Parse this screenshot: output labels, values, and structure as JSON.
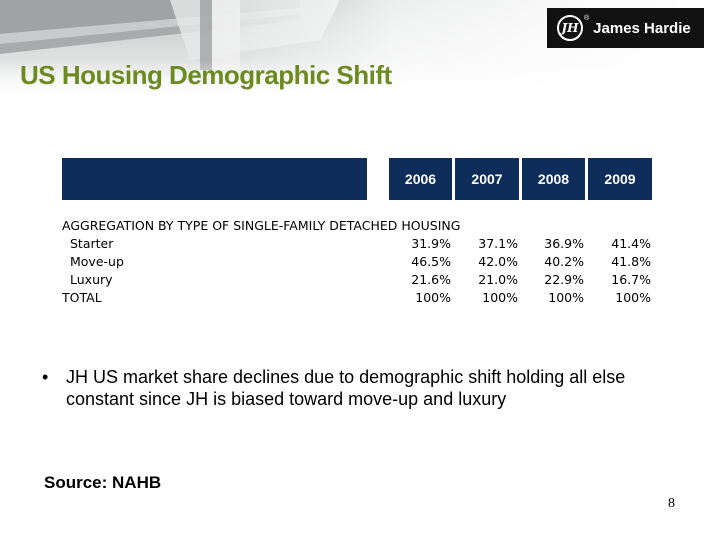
{
  "brand": {
    "logo_mark": "JH",
    "name": "James Hardie",
    "reg_mark": "®"
  },
  "slide": {
    "title": "US Housing Demographic Shift",
    "page_number": "8"
  },
  "table": {
    "years": [
      "2006",
      "2007",
      "2008",
      "2009"
    ],
    "section_heading": "AGGREGATION BY TYPE OF SINGLE-FAMILY DETACHED HOUSING",
    "rows": [
      {
        "label": "Starter",
        "values": [
          "31.9%",
          "37.1%",
          "36.9%",
          "41.4%"
        ]
      },
      {
        "label": "Move-up",
        "values": [
          "46.5%",
          "42.0%",
          "40.2%",
          "41.8%"
        ]
      },
      {
        "label": "Luxury",
        "values": [
          "21.6%",
          "21.0%",
          "22.9%",
          "16.7%"
        ]
      },
      {
        "label": "TOTAL",
        "values": [
          "100%",
          "100%",
          "100%",
          "100%"
        ]
      }
    ]
  },
  "bullets": [
    {
      "marker": "•",
      "text": "JH US market share declines due to demographic shift holding all else constant since JH is biased toward move-up and luxury"
    }
  ],
  "source": "Source: NAHB",
  "colors": {
    "title": "#6b8a1f",
    "table_header": "#0e2d5a",
    "logo_bg": "#111111"
  }
}
